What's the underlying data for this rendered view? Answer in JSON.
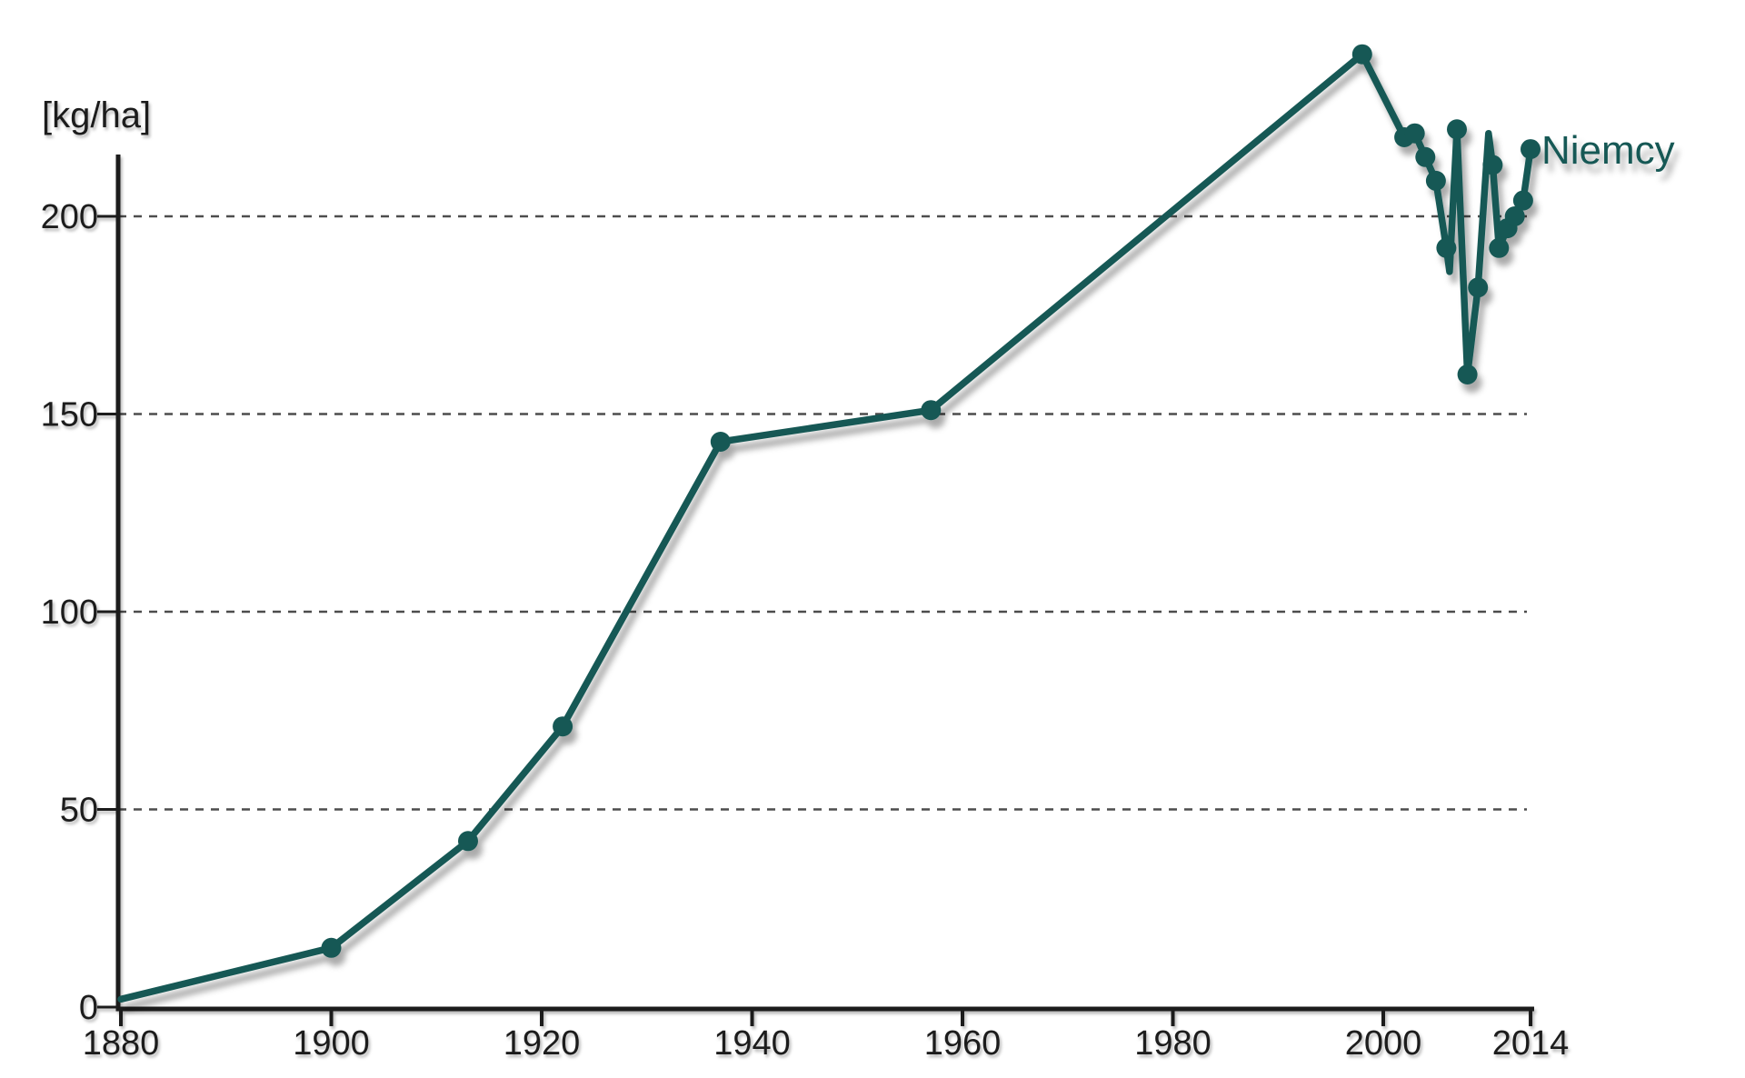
{
  "page": {
    "background": "#ffffff"
  },
  "chart_data": {
    "type": "line",
    "title": "",
    "xlabel": "",
    "ylabel": "[kg/ha]",
    "x_ticks": [
      1880,
      1900,
      1920,
      1940,
      1960,
      1980,
      2000,
      2014
    ],
    "y_ticks": [
      0,
      50,
      100,
      150,
      200
    ],
    "xlim": [
      1880,
      2014
    ],
    "ylim": [
      0,
      250
    ],
    "grid": "horizontal dashed gridlines at 50, 100, 150, 200",
    "legend_position": "label at end of line",
    "series": [
      {
        "name": "Niemcy",
        "color": "#185854",
        "points": [
          {
            "x": 1880,
            "y": 2,
            "marker": false
          },
          {
            "x": 1900,
            "y": 15,
            "marker": true
          },
          {
            "x": 1913,
            "y": 42,
            "marker": true
          },
          {
            "x": 1922,
            "y": 71,
            "marker": true
          },
          {
            "x": 1937,
            "y": 143,
            "marker": true
          },
          {
            "x": 1957,
            "y": 151,
            "marker": true
          },
          {
            "x": 1998,
            "y": 241,
            "marker": true
          },
          {
            "x": 2002,
            "y": 220,
            "marker": true
          },
          {
            "x": 2003,
            "y": 221,
            "marker": true
          },
          {
            "x": 2004,
            "y": 215,
            "marker": true
          },
          {
            "x": 2005,
            "y": 209,
            "marker": true
          },
          {
            "x": 2006,
            "y": 192,
            "marker": true
          },
          {
            "x": 2006.3,
            "y": 186,
            "marker": false
          },
          {
            "x": 2007,
            "y": 222,
            "marker": true
          },
          {
            "x": 2008,
            "y": 160,
            "marker": true
          },
          {
            "x": 2009,
            "y": 182,
            "marker": true
          },
          {
            "x": 2010,
            "y": 221,
            "marker": false
          },
          {
            "x": 2010.4,
            "y": 213,
            "marker": true
          },
          {
            "x": 2011,
            "y": 192,
            "marker": true
          },
          {
            "x": 2011.8,
            "y": 197,
            "marker": true
          },
          {
            "x": 2012.5,
            "y": 200,
            "marker": true
          },
          {
            "x": 2013.3,
            "y": 204,
            "marker": true
          },
          {
            "x": 2014,
            "y": 217,
            "marker": true
          }
        ]
      }
    ]
  },
  "colors": {
    "line": "#185854",
    "axis": "#1f1f1f",
    "grid": "#4d4d4d",
    "background": "#ffffff"
  }
}
